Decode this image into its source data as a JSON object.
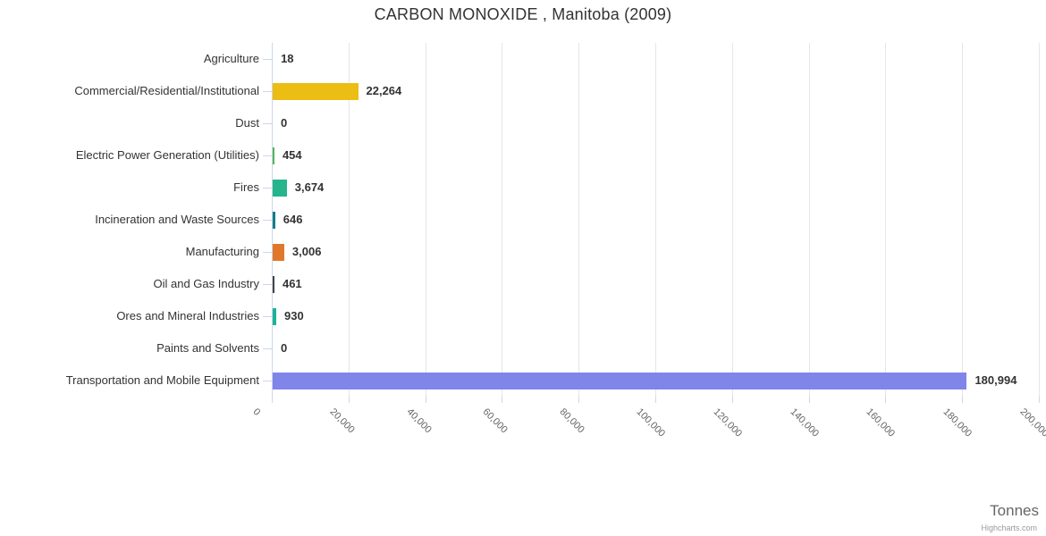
{
  "header": {
    "title": "CARBON MONOXIDE , Manitoba (2009)"
  },
  "axis": {
    "x_title": "Tonnes"
  },
  "credits": {
    "label": "Highcharts.com"
  },
  "colors": {
    "grid": "#e6e6e6",
    "axis_line": "#ccd6eb",
    "label_text": "#333333",
    "tick_label_text": "#666666",
    "credits_text": "#999999"
  },
  "chart_data": {
    "type": "bar",
    "orientation": "horizontal",
    "title": "CARBON MONOXIDE , Manitoba (2009)",
    "xlabel": "Tonnes",
    "ylabel": "",
    "grid": true,
    "legend": false,
    "xlim": [
      0,
      200000
    ],
    "tick_interval": 20000,
    "tick_labels": [
      "0",
      "20,000",
      "40,000",
      "60,000",
      "80,000",
      "100,000",
      "120,000",
      "140,000",
      "160,000",
      "180,000",
      "200,000"
    ],
    "categories": [
      "Agriculture",
      "Commercial/Residential/Institutional",
      "Dust",
      "Electric Power Generation (Utilities)",
      "Fires",
      "Incineration and Waste Sources",
      "Manufacturing",
      "Oil and Gas Industry",
      "Ores and Mineral Industries",
      "Paints and Solvents",
      "Transportation and Mobile Equipment"
    ],
    "values": [
      18,
      22264,
      0,
      454,
      3674,
      646,
      3006,
      461,
      930,
      0,
      180994
    ],
    "value_labels": [
      "18",
      "22,264",
      "0",
      "454",
      "3,674",
      "646",
      "3,006",
      "461",
      "930",
      "0",
      "180,994"
    ],
    "bar_colors": [
      "#26b48c",
      "#ecbd13",
      "#999999",
      "#4eb857",
      "#26b48c",
      "#157f87",
      "#e0782a",
      "#434348",
      "#1db39a",
      "#999999",
      "#8085e9"
    ]
  }
}
